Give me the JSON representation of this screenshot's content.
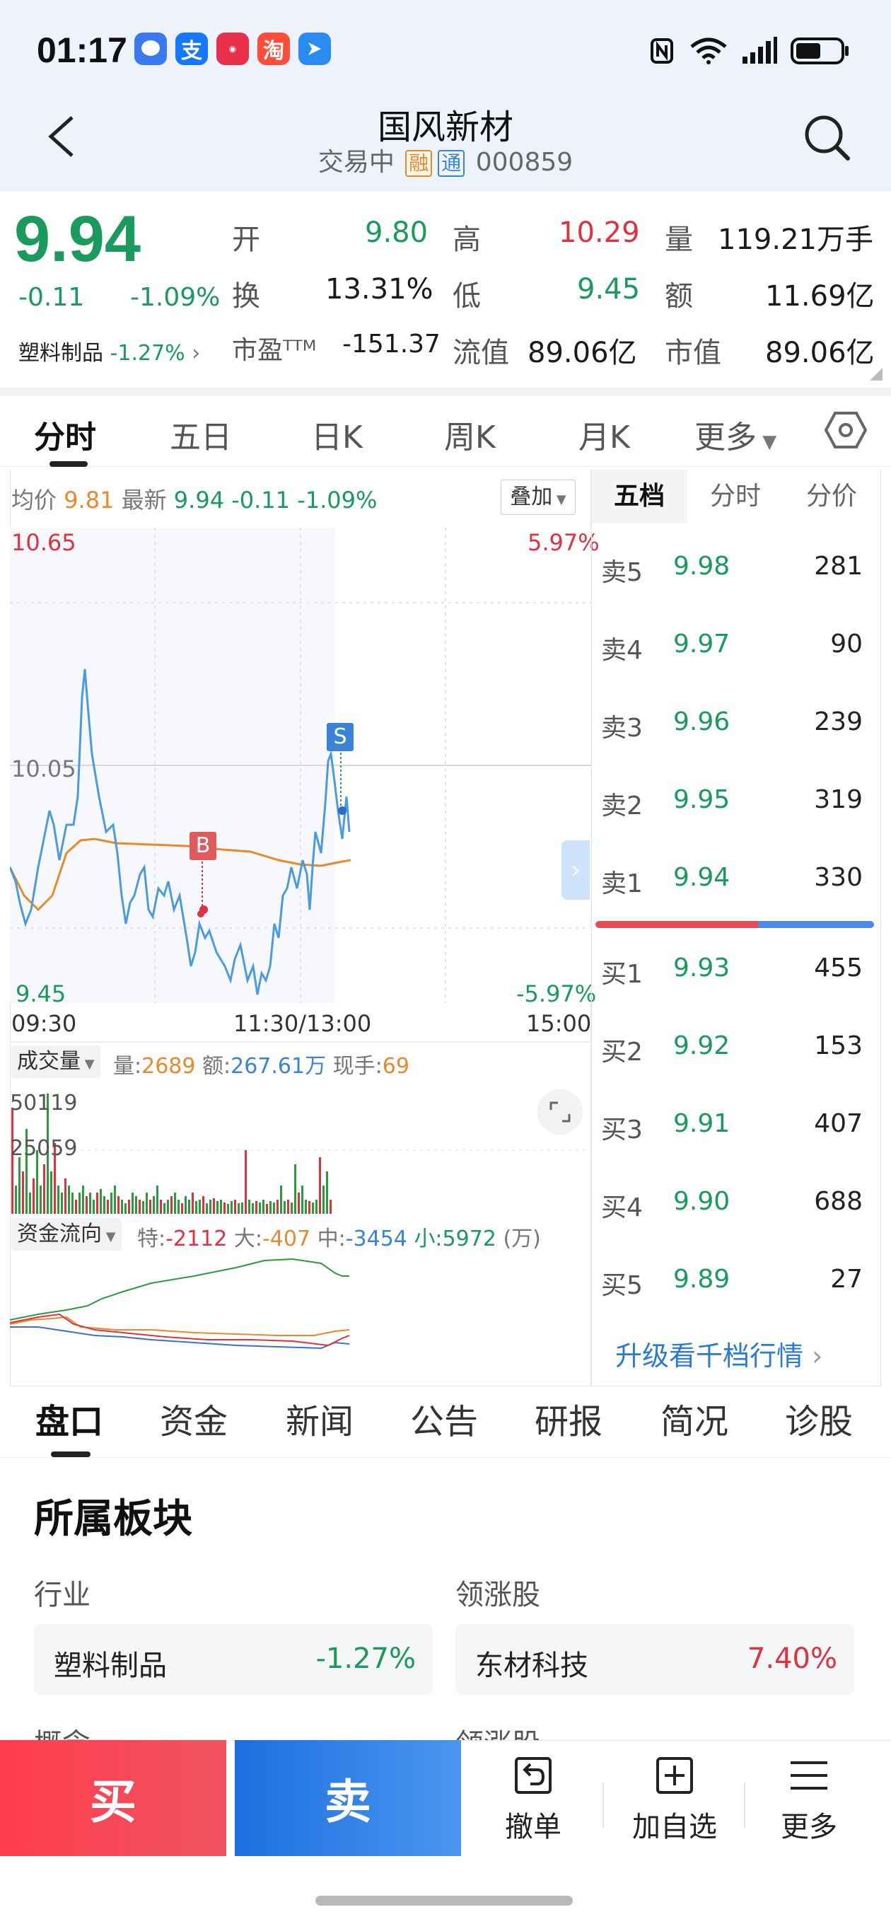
{
  "status_bar": {
    "time": "01:17",
    "app_icons": [
      "message-app-icon",
      "alipay-icon",
      "app-gallery-icon",
      "taobao-icon",
      "feishu-icon"
    ]
  },
  "header": {
    "title": "国风新材",
    "status": "交易中",
    "tag_rong": "融",
    "tag_tong": "通",
    "code": "000859"
  },
  "quote": {
    "price": "9.94",
    "change": "-0.11",
    "change_pct": "-1.09%",
    "sector_label": "塑料制品",
    "sector_pct": "-1.27%",
    "open_label": "开",
    "open": "9.80",
    "high_label": "高",
    "high": "10.29",
    "vol_label": "量",
    "vol": "119.21万手",
    "turnover_label": "换",
    "turnover": "13.31%",
    "low_label": "低",
    "low": "9.45",
    "amount_label": "额",
    "amount": "11.69亿",
    "pe_label": "市盈ᵀᵀᴹ",
    "pe": "-151.37",
    "float_label": "流值",
    "float": "89.06亿",
    "mcap_label": "市值",
    "mcap": "89.06亿"
  },
  "chart_tabs": [
    "分时",
    "五日",
    "日K",
    "周K",
    "月K",
    "更多"
  ],
  "intraday": {
    "avg_label": "均价",
    "avg": "9.81",
    "latest_label": "最新",
    "latest": "9.94",
    "chg": "-0.11",
    "chg_pct": "-1.09%",
    "overlay_btn": "叠加",
    "y_top": "10.65",
    "y_mid": "10.05",
    "y_bot": "9.45",
    "pct_top": "5.97%",
    "pct_bot": "-5.97%",
    "t_start": "09:30",
    "t_mid": "11:30/13:00",
    "t_end": "15:00",
    "marker_b": "B",
    "marker_s": "S"
  },
  "volume": {
    "label": "成交量",
    "vol_label": "量:",
    "vol": "2689",
    "amt_label": "额:",
    "amt": "267.61万",
    "now_label": "现手:",
    "now": "69",
    "tick_top": "50119",
    "tick_mid": "25059"
  },
  "flow": {
    "label": "资金流向",
    "te_label": "特:",
    "te": "-2112",
    "da_label": "大:",
    "da": "-407",
    "zhong_label": "中:",
    "zhong": "-3454",
    "xiao_label": "小:",
    "xiao": "5972",
    "unit": "(万)"
  },
  "orderbook": {
    "tabs": [
      "五档",
      "分时",
      "分价"
    ],
    "asks": [
      {
        "label": "卖5",
        "price": "9.98",
        "vol": "281"
      },
      {
        "label": "卖4",
        "price": "9.97",
        "vol": "90"
      },
      {
        "label": "卖3",
        "price": "9.96",
        "vol": "239"
      },
      {
        "label": "卖2",
        "price": "9.95",
        "vol": "319"
      },
      {
        "label": "卖1",
        "price": "9.94",
        "vol": "330"
      }
    ],
    "bids": [
      {
        "label": "买1",
        "price": "9.93",
        "vol": "455"
      },
      {
        "label": "买2",
        "price": "9.92",
        "vol": "153"
      },
      {
        "label": "买3",
        "price": "9.91",
        "vol": "407"
      },
      {
        "label": "买4",
        "price": "9.90",
        "vol": "688"
      },
      {
        "label": "买5",
        "price": "9.89",
        "vol": "27"
      }
    ],
    "upgrade": "升级看千档行情"
  },
  "bottom_tabs": [
    "盘口",
    "资金",
    "新闻",
    "公告",
    "研报",
    "简况",
    "诊股"
  ],
  "section": {
    "title": "所属板块",
    "industry_label": "行业",
    "lead_label": "领涨股",
    "industry_name": "塑料制品",
    "industry_pct": "-1.27%",
    "lead_name": "东材科技",
    "lead_pct": "7.40%",
    "concept_label": "概念",
    "lead_label2": "领涨股"
  },
  "action_bar": {
    "buy": "买",
    "sell": "卖",
    "cancel": "撤单",
    "add": "加自选",
    "more": "更多"
  }
}
